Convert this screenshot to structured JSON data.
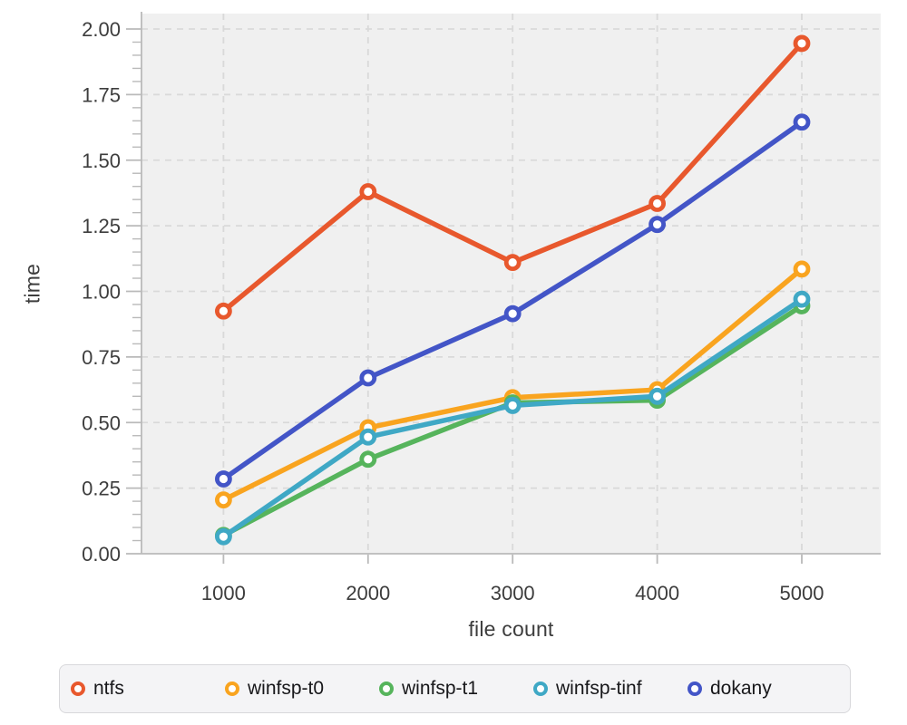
{
  "chart_data": {
    "type": "line",
    "title": "",
    "xlabel": "file count",
    "ylabel": "time",
    "categories": [
      1000,
      2000,
      3000,
      4000,
      5000
    ],
    "x_tick_labels": [
      "1000",
      "2000",
      "3000",
      "4000",
      "5000"
    ],
    "y_tick_values": [
      0,
      0.25,
      0.5,
      0.75,
      1.0,
      1.25,
      1.5,
      1.75,
      2.0
    ],
    "y_tick_labels": [
      "0.00",
      "0.25",
      "0.50",
      "0.75",
      "1.00",
      "1.25",
      "1.50",
      "1.75",
      "2.00"
    ],
    "ylim": [
      0,
      2.0
    ],
    "grid": true,
    "grid_style": "dashed",
    "marker": "open-circle",
    "legend_position": "bottom",
    "colors": {
      "plot_background": "#f0f0f0",
      "gridline": "#d9d9d9",
      "axis_line": "#bababa",
      "tick_label": "#3d3d3d"
    },
    "series": [
      {
        "name": "ntfs",
        "color": "#e8582d",
        "values": [
          0.925,
          1.38,
          1.11,
          1.335,
          1.945
        ]
      },
      {
        "name": "winfsp-t0",
        "color": "#f9a41f",
        "values": [
          0.205,
          0.48,
          0.595,
          0.625,
          1.085
        ]
      },
      {
        "name": "winfsp-t1",
        "color": "#56b45c",
        "values": [
          0.07,
          0.36,
          0.575,
          0.585,
          0.945
        ]
      },
      {
        "name": "winfsp-tinf",
        "color": "#3fa8c5",
        "values": [
          0.065,
          0.445,
          0.565,
          0.6,
          0.97
        ]
      },
      {
        "name": "dokany",
        "color": "#4355c7",
        "values": [
          0.285,
          0.67,
          0.915,
          1.255,
          1.645
        ]
      }
    ]
  }
}
